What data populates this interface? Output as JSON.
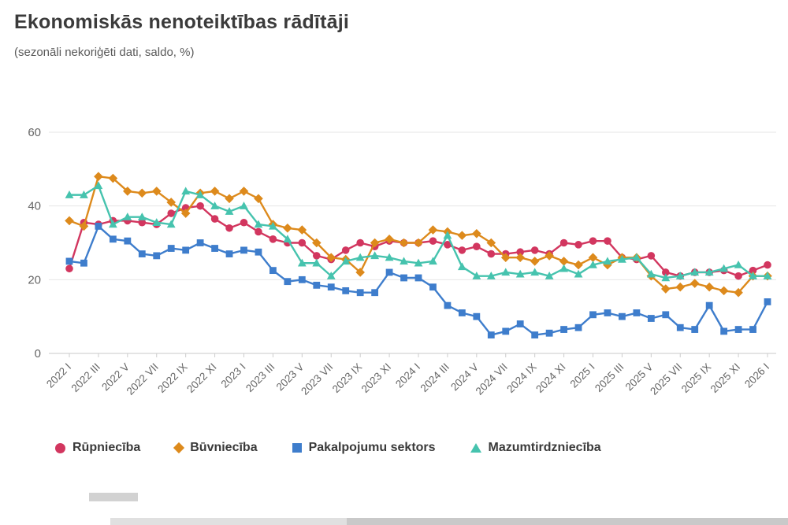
{
  "chart": {
    "title": "Ekonomiskās nenoteiktības rādītāji",
    "subtitle": "(sezonāli nekoriģēti dati, saldo, %)"
  },
  "chart_data": {
    "type": "line",
    "title": "Ekonomiskās nenoteiktības rādītāji",
    "subtitle": "(sezonāli nekoriģēti dati, saldo, %)",
    "ylim": [
      0,
      60
    ],
    "yticks": [
      0,
      20,
      40,
      60
    ],
    "grid": true,
    "legend_position": "bottom",
    "x_tick_every": 2,
    "x_labels": [
      "2022 I",
      "2022 II",
      "2022 III",
      "2022 IV",
      "2022 V",
      "2022 VI",
      "2022 VII",
      "2022 VIII",
      "2022 IX",
      "2022 X",
      "2022 XI",
      "2022 XII",
      "2023 I",
      "2023 II",
      "2023 III",
      "2023 IV",
      "2023 V",
      "2023 VI",
      "2023 VII",
      "2023 VIII",
      "2023 IX",
      "2023 X",
      "2023 XI",
      "2023 XII",
      "2024 I",
      "2024 II",
      "2024 III",
      "2024 IV",
      "2024 V",
      "2024 VI",
      "2024 VII",
      "2024 VIII",
      "2024 IX",
      "2024 X",
      "2024 XI",
      "2024 XII",
      "2025 I",
      "2025 II",
      "2025 III",
      "2025 IV",
      "2025 V",
      "2025 VI",
      "2025 VII",
      "2025 VIII",
      "2025 IX",
      "2025 X",
      "2025 XI",
      "2025 XII",
      "2026 I"
    ],
    "series": [
      {
        "name": "Rūpniecība",
        "slug": "rupnieciba",
        "color": "#d2365f",
        "marker": "circle",
        "values": [
          23,
          35.5,
          35,
          36,
          36,
          35.5,
          35,
          38,
          39.5,
          40,
          36.5,
          34,
          35.5,
          33,
          31,
          30,
          30,
          26.5,
          25.5,
          28,
          30,
          29,
          30.5,
          30,
          30,
          30.5,
          29.5,
          28,
          29,
          27,
          27,
          27.5,
          28,
          27,
          30,
          29.5,
          30.5,
          30.5,
          26,
          25.5,
          26.5,
          22,
          21,
          22,
          22,
          22.5,
          21,
          22.5,
          24
        ]
      },
      {
        "name": "Būvniecība",
        "slug": "buvnieciba",
        "color": "#dd8a1c",
        "marker": "diamond",
        "values": [
          36,
          34.5,
          48,
          47.5,
          44,
          43.5,
          44,
          41,
          38,
          43.5,
          44,
          42,
          44,
          42,
          35,
          34,
          33.5,
          30,
          26,
          25.5,
          22,
          30,
          31,
          30,
          30,
          33.5,
          33,
          32,
          32.5,
          30,
          26,
          26,
          25,
          26.5,
          25,
          24,
          26,
          24,
          26,
          26,
          21,
          17.5,
          18,
          19,
          18,
          17,
          16.5,
          21,
          21
        ]
      },
      {
        "name": "Pakalpojumu sektors",
        "slug": "pakalpojumu-sektors",
        "color": "#3e7dcc",
        "marker": "square",
        "values": [
          25,
          24.5,
          34.5,
          31,
          30.5,
          27,
          26.5,
          28.5,
          28,
          30,
          28.5,
          27,
          28,
          27.5,
          22.5,
          19.5,
          20,
          18.5,
          18,
          17,
          16.5,
          16.5,
          22,
          20.5,
          20.5,
          18,
          13,
          11,
          10,
          5,
          6,
          8,
          5,
          5.5,
          6.5,
          7,
          10.5,
          11,
          10,
          11,
          9.5,
          10.5,
          7,
          6.5,
          13,
          6,
          6.5,
          6.5,
          14
        ]
      },
      {
        "name": "Mazumtirdzniecība",
        "slug": "mazumtirdznieciba",
        "color": "#46c3ae",
        "marker": "triangle-up",
        "values": [
          43,
          43,
          45.5,
          35,
          37,
          37,
          35.5,
          35,
          44,
          43,
          40,
          38.5,
          40,
          35,
          34.5,
          31,
          24.5,
          24.5,
          21,
          25,
          26,
          26.5,
          26,
          25,
          24.5,
          25,
          32,
          23.5,
          21,
          21,
          22,
          21.5,
          22,
          21,
          23,
          21.5,
          24,
          25,
          25.5,
          26,
          21.5,
          20.5,
          21,
          22,
          22,
          23,
          24,
          21,
          21
        ]
      }
    ]
  }
}
